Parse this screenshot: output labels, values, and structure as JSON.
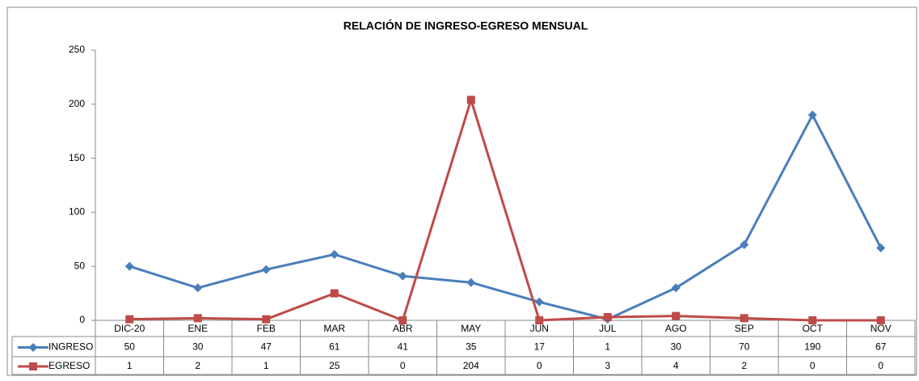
{
  "chart_data": {
    "type": "line",
    "title": "RELACIÓN DE INGRESO-EGRESO MENSUAL",
    "categories": [
      "DIC-20",
      "ENE",
      "FEB",
      "MAR",
      "ABR",
      "MAY",
      "JUN",
      "JUL",
      "AGO",
      "SEP",
      "OCT",
      "NOV"
    ],
    "series": [
      {
        "name": "INGRESO",
        "color": "#4a7ebb",
        "marker": "diamond",
        "values": [
          50,
          30,
          47,
          61,
          41,
          35,
          17,
          1,
          30,
          70,
          190,
          67
        ]
      },
      {
        "name": "EGRESO",
        "color": "#be4b48",
        "marker": "square",
        "values": [
          1,
          2,
          1,
          25,
          0,
          204,
          0,
          3,
          4,
          2,
          0,
          0
        ]
      }
    ],
    "ylim": [
      0,
      250
    ],
    "yticks": [
      0,
      50,
      100,
      150,
      200,
      250
    ],
    "grid": false
  }
}
